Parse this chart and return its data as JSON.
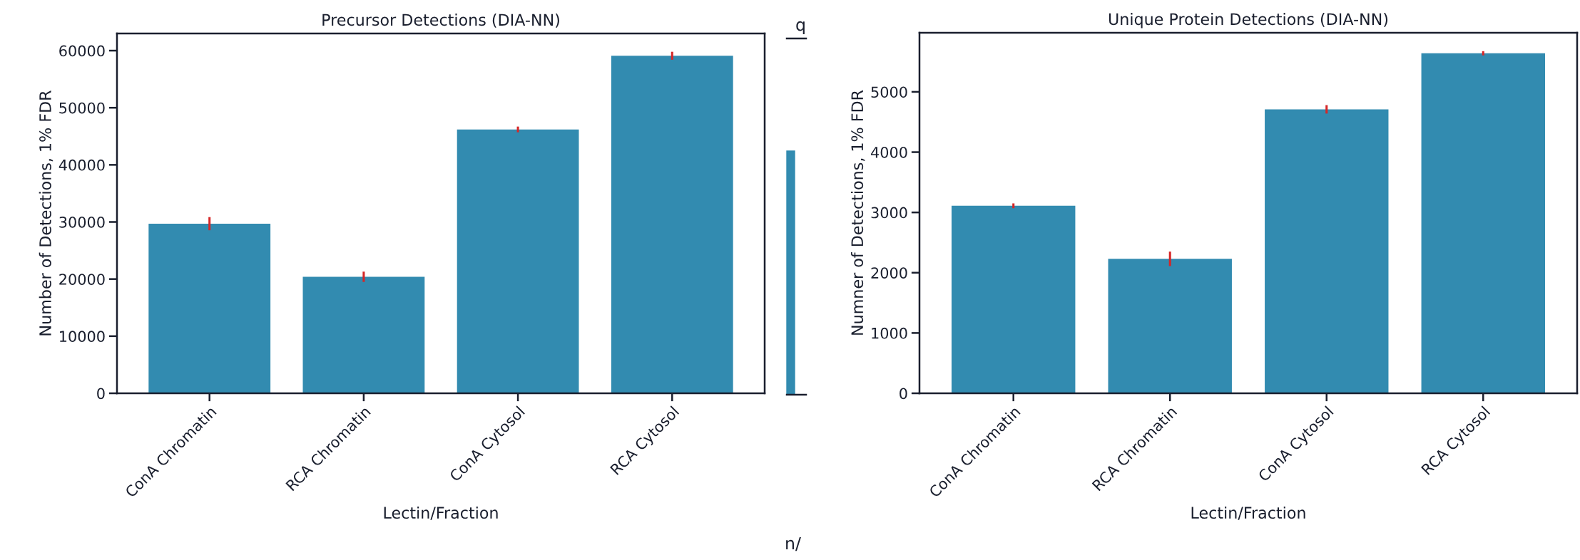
{
  "chart_data": [
    {
      "type": "bar",
      "title": "Precursor Detections (DIA-NN)",
      "xlabel": "Lectin/Fraction",
      "ylabel": "Number of Detections, 1% FDR",
      "categories": [
        "ConA Chromatin",
        "RCA Chromatin",
        "ConA Cytosol",
        "RCA Cytosol"
      ],
      "values": [
        29700,
        20400,
        46200,
        59100
      ],
      "errors": [
        1150,
        900,
        500,
        700
      ],
      "color": "#328bb0",
      "ylim": [
        0,
        63000
      ],
      "yticks": [
        0,
        10000,
        20000,
        30000,
        40000,
        50000,
        60000
      ],
      "grid": false,
      "legend": false,
      "annotations": [
        "q",
        "n/"
      ]
    },
    {
      "type": "bar",
      "title": "Unique Protein Detections (DIA-NN)",
      "xlabel": "Lectin/Fraction",
      "ylabel": "Numner of Detections, 1% FDR",
      "categories": [
        "ConA Chromatin",
        "RCA Chromatin",
        "ConA Cytosol",
        "RCA Cytosol"
      ],
      "values": [
        3110,
        2230,
        4710,
        5640
      ],
      "errors": [
        40,
        120,
        70,
        35
      ],
      "color": "#328bb0",
      "ylim": [
        0,
        5980
      ],
      "yticks": [
        0,
        1000,
        2000,
        3000,
        4000,
        5000
      ],
      "grid": false,
      "legend": false
    }
  ]
}
